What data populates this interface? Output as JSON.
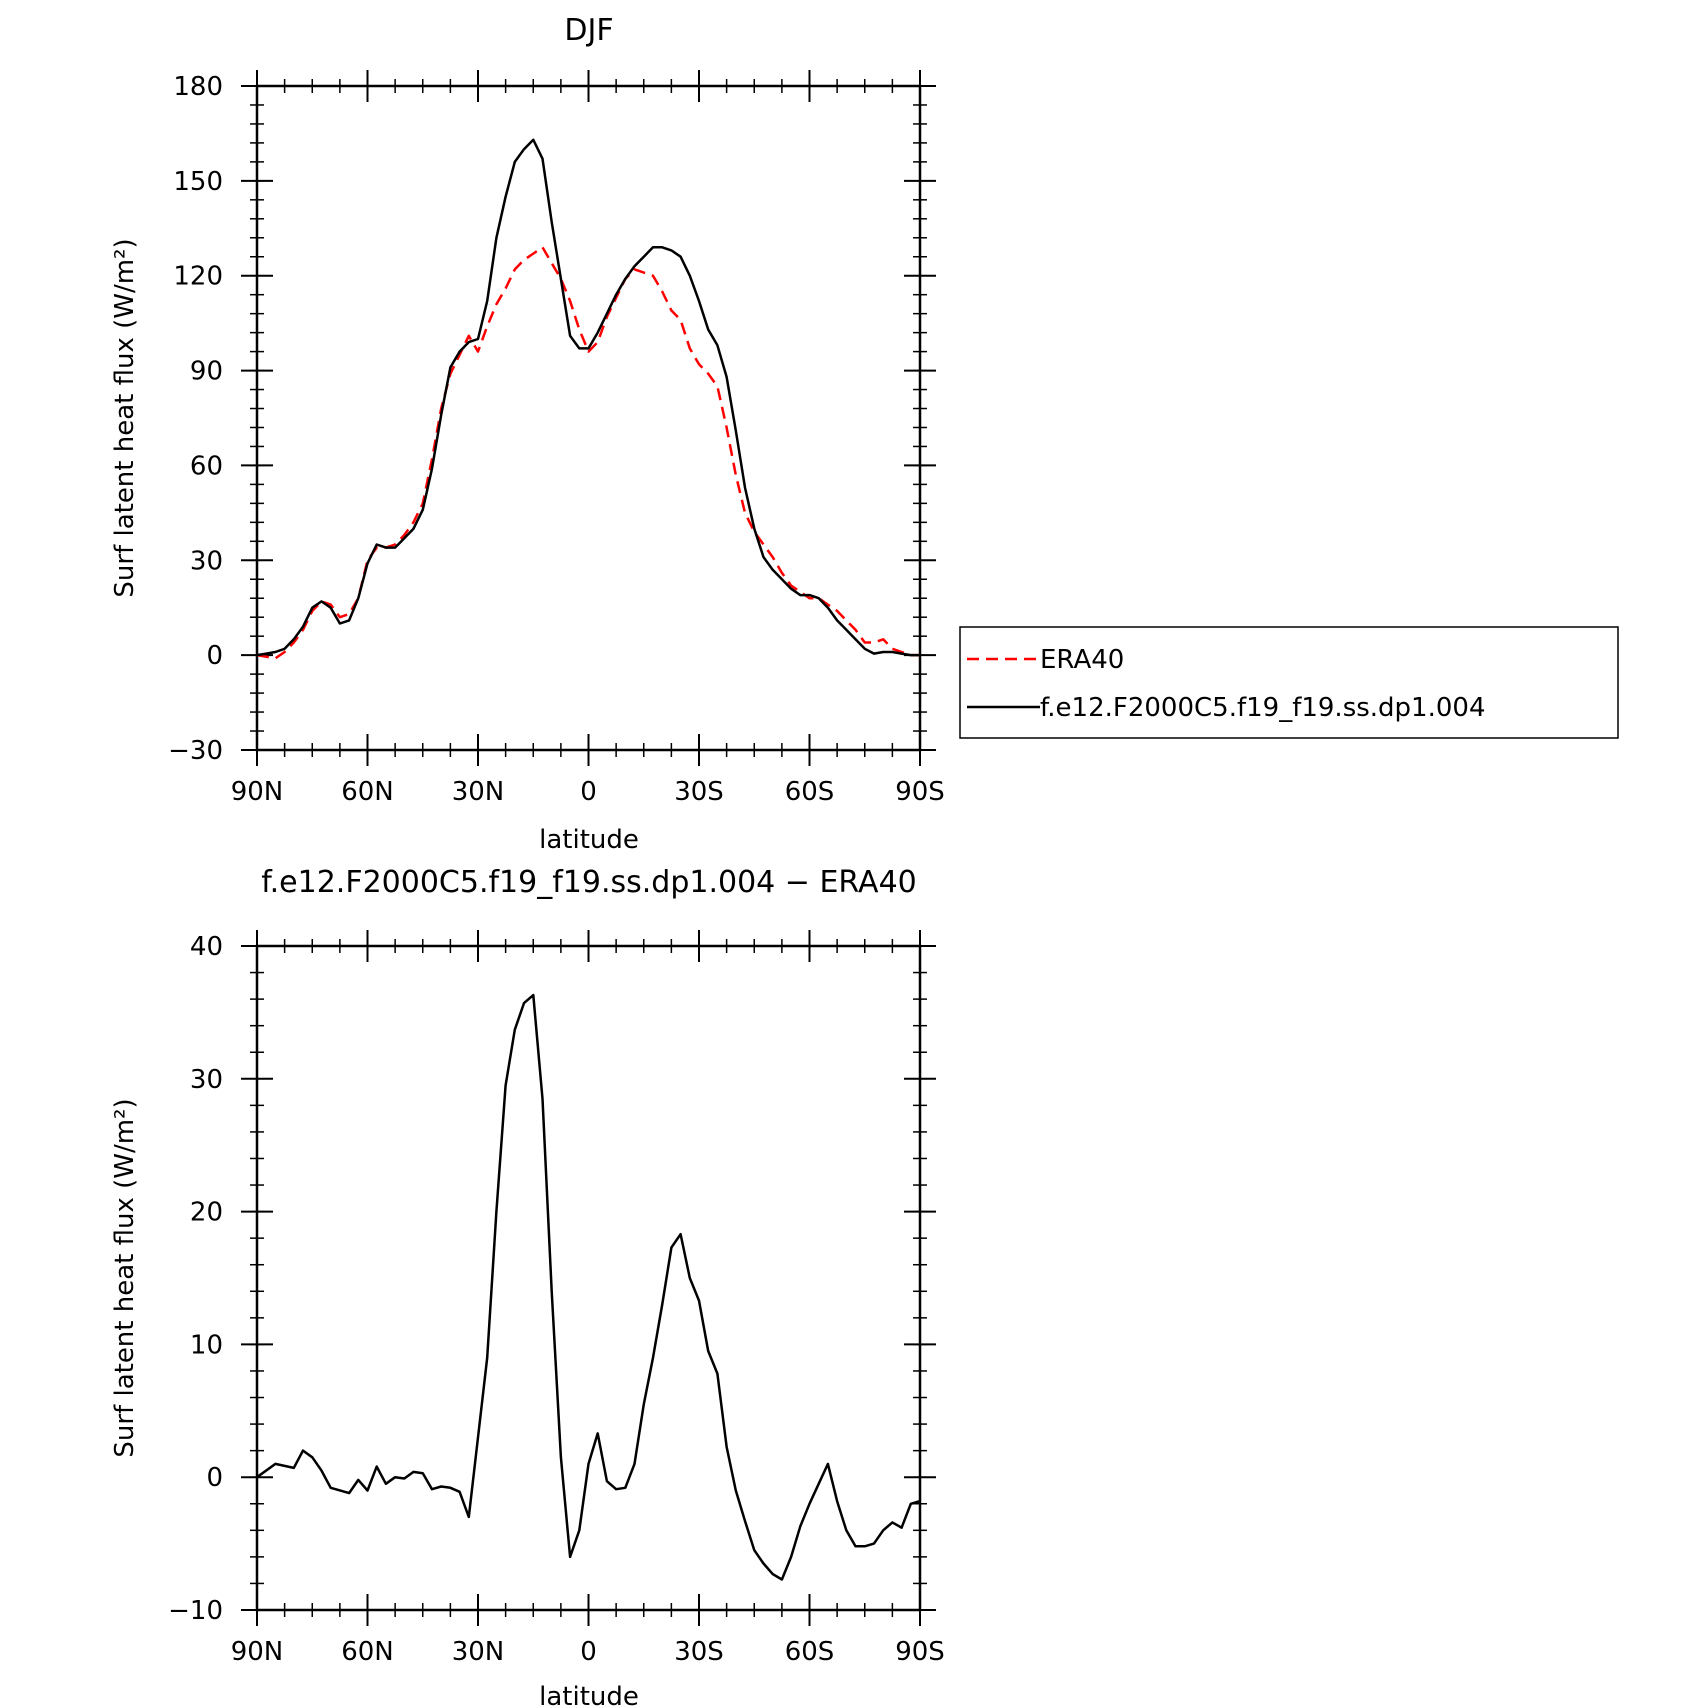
{
  "chart_data": [
    {
      "type": "line",
      "title": "DJF",
      "xlabel": "latitude",
      "ylabel": "Surf latent heat flux (W/m²)",
      "xlim": [
        90,
        -90
      ],
      "ylim": [
        -30,
        180
      ],
      "xticks": [
        90,
        60,
        30,
        0,
        -30,
        -60,
        -90
      ],
      "xtick_labels": [
        "90N",
        "60N",
        "30N",
        "0",
        "30S",
        "60S",
        "90S"
      ],
      "yticks": [
        -30,
        0,
        30,
        60,
        90,
        120,
        150,
        180
      ],
      "ytick_labels": [
        "−30",
        "0",
        "30",
        "60",
        "90",
        "120",
        "150",
        "180"
      ],
      "grid": false,
      "legend": "right",
      "series": [
        {
          "name": "ERA40",
          "color": "#ff0000",
          "dash": "dashed",
          "x": [
            90,
            85,
            82.5,
            80,
            77.5,
            75,
            72.5,
            70,
            67.5,
            65,
            62.5,
            60,
            57.5,
            55,
            52.5,
            50,
            47.5,
            45,
            42.5,
            40,
            37.5,
            35,
            32.5,
            30,
            27.5,
            25,
            22.5,
            20,
            17.5,
            15,
            12.5,
            10,
            7.5,
            5,
            2.5,
            0,
            -2.5,
            -5,
            -7.5,
            -10,
            -12.5,
            -15,
            -17.5,
            -20,
            -22.5,
            -25,
            -27.5,
            -30,
            -32.5,
            -35,
            -37.5,
            -40,
            -42.5,
            -45,
            -47.5,
            -50,
            -52.5,
            -55,
            -57.5,
            -60,
            -62.5,
            -65,
            -67.5,
            -70,
            -72.5,
            -75,
            -77.5,
            -80,
            -82.5,
            -85,
            -87.5,
            -90
          ],
          "y": [
            0,
            -1,
            1,
            4,
            8,
            14,
            17,
            16,
            12,
            13,
            18,
            30,
            34,
            34,
            35,
            38,
            42,
            48,
            62,
            78,
            89,
            95,
            101,
            96,
            104,
            111,
            116,
            122,
            125,
            127,
            129,
            124,
            119,
            112,
            103,
            96,
            99,
            107,
            113,
            119,
            122,
            121,
            120,
            115,
            109,
            106,
            97,
            92,
            89,
            85,
            72,
            57,
            45,
            39,
            35,
            31,
            26,
            22,
            20,
            18,
            18,
            16,
            14,
            11,
            8,
            4,
            4,
            5,
            2,
            1,
            0,
            0
          ]
        },
        {
          "name": "f.e12.F2000C5.f19_f19.ss.dp1.004",
          "color": "#000000",
          "dash": "solid",
          "x": [
            90,
            87.5,
            85,
            82.5,
            80,
            77.5,
            75,
            72.5,
            70,
            67.5,
            65,
            62.5,
            60,
            57.5,
            55,
            52.5,
            50,
            47.5,
            45,
            42.5,
            40,
            37.5,
            35,
            32.5,
            30,
            27.5,
            25,
            22.5,
            20,
            17.5,
            15,
            12.5,
            10,
            7.5,
            5,
            2.5,
            0,
            -2.5,
            -5,
            -7.5,
            -10,
            -12.5,
            -15,
            -17.5,
            -20,
            -22.5,
            -25,
            -27.5,
            -30,
            -32.5,
            -35,
            -37.5,
            -40,
            -42.5,
            -45,
            -47.5,
            -50,
            -52.5,
            -55,
            -57.5,
            -60,
            -62.5,
            -65,
            -67.5,
            -70,
            -72.5,
            -75,
            -77.5,
            -80,
            -82.5,
            -85,
            -87.5,
            -90
          ],
          "y": [
            0,
            0.5,
            1,
            2,
            5,
            9,
            15,
            17,
            15,
            10,
            11,
            18,
            29,
            35,
            34,
            34,
            37,
            40,
            46,
            59,
            76,
            91,
            96,
            99,
            100,
            112,
            132,
            145,
            156,
            160,
            163,
            157,
            137,
            119,
            101,
            97,
            97,
            102,
            108,
            114,
            119,
            123,
            126,
            129,
            129,
            128,
            126,
            120,
            112,
            103,
            98,
            88,
            71,
            53,
            40,
            31,
            27,
            24,
            21,
            19,
            19,
            18,
            15,
            11,
            8,
            5,
            2,
            0.5,
            1,
            1,
            0.5,
            0,
            0
          ]
        }
      ]
    },
    {
      "type": "line",
      "title": "f.e12.F2000C5.f19_f19.ss.dp1.004 − ERA40",
      "xlabel": "latitude",
      "ylabel": "Surf latent heat flux (W/m²)",
      "xlim": [
        90,
        -90
      ],
      "ylim": [
        -10,
        40
      ],
      "xticks": [
        90,
        60,
        30,
        0,
        -30,
        -60,
        -90
      ],
      "xtick_labels": [
        "90N",
        "60N",
        "30N",
        "0",
        "30S",
        "60S",
        "90S"
      ],
      "yticks": [
        -10,
        0,
        10,
        20,
        30,
        40
      ],
      "ytick_labels": [
        "−10",
        "0",
        "10",
        "20",
        "30",
        "40"
      ],
      "grid": false,
      "series": [
        {
          "color": "#000000",
          "dash": "solid",
          "x": [
            90,
            85,
            80,
            77.5,
            75,
            72.5,
            70,
            65,
            62.5,
            60,
            57.5,
            55,
            52.5,
            50,
            47.5,
            45,
            42.5,
            40,
            37.5,
            35,
            32.5,
            30,
            27.5,
            25,
            22.5,
            20,
            17.5,
            15,
            12.5,
            10,
            7.5,
            5,
            2.5,
            0,
            -2.5,
            -5,
            -7.5,
            -10,
            -12.5,
            -15,
            -17.5,
            -20,
            -22.5,
            -25,
            -27.5,
            -30,
            -32.5,
            -35,
            -37.5,
            -40,
            -42.5,
            -45,
            -47.5,
            -50,
            -52.5,
            -55,
            -57.5,
            -60,
            -62.5,
            -65,
            -67.5,
            -70,
            -72.5,
            -75,
            -77.5,
            -80,
            -82.5,
            -85,
            -87.5,
            -90
          ],
          "y": [
            0,
            1,
            0.7,
            2,
            1.5,
            0.5,
            -0.8,
            -1.2,
            -0.2,
            -1,
            0.8,
            -0.5,
            0,
            -0.1,
            0.4,
            0.3,
            -0.9,
            -0.7,
            -0.8,
            -1.1,
            -3,
            3,
            9,
            20,
            29.5,
            33.7,
            35.7,
            36.3,
            28.5,
            14,
            1.5,
            -6,
            -4,
            1,
            3.3,
            -0.3,
            -0.9,
            -0.8,
            1,
            5.5,
            9,
            13,
            17.3,
            18.3,
            15,
            13.3,
            9.5,
            7.8,
            2.3,
            -1,
            -3.3,
            -5.5,
            -6.5,
            -7.3,
            -7.7,
            -6,
            -3.7,
            -2,
            -0.5,
            1,
            -1.8,
            -4,
            -5.2,
            -5.2,
            -5,
            -4,
            -3.4,
            -3.8,
            -2,
            -1.8
          ]
        }
      ]
    }
  ]
}
